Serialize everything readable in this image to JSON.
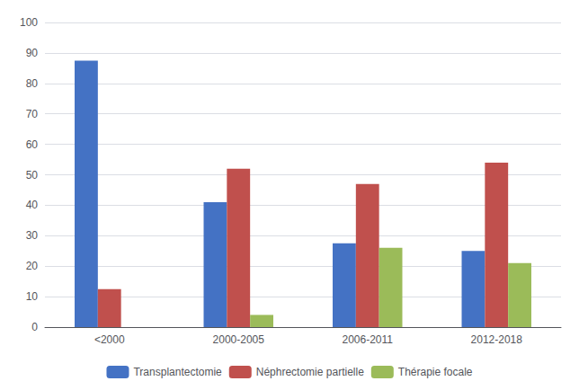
{
  "chart_data": {
    "type": "bar",
    "categories": [
      "<2000",
      "2000-2005",
      "2006-2011",
      "2012-2018"
    ],
    "series": [
      {
        "name": "Transplantectomie",
        "color": "#4472C4",
        "values": [
          87.5,
          41.0,
          27.5,
          25.0
        ]
      },
      {
        "name": "Néphrectomie partielle",
        "color": "#C0504D",
        "values": [
          12.5,
          52.0,
          47.0,
          54.0
        ]
      },
      {
        "name": "Thérapie focale",
        "color": "#9BBB59",
        "values": [
          0,
          4.0,
          26.0,
          21.0
        ]
      }
    ],
    "ylim": [
      0,
      100
    ],
    "yticks": [
      0,
      10,
      20,
      30,
      40,
      50,
      60,
      70,
      80,
      90,
      100
    ],
    "grid": true,
    "legend": "bottom"
  }
}
